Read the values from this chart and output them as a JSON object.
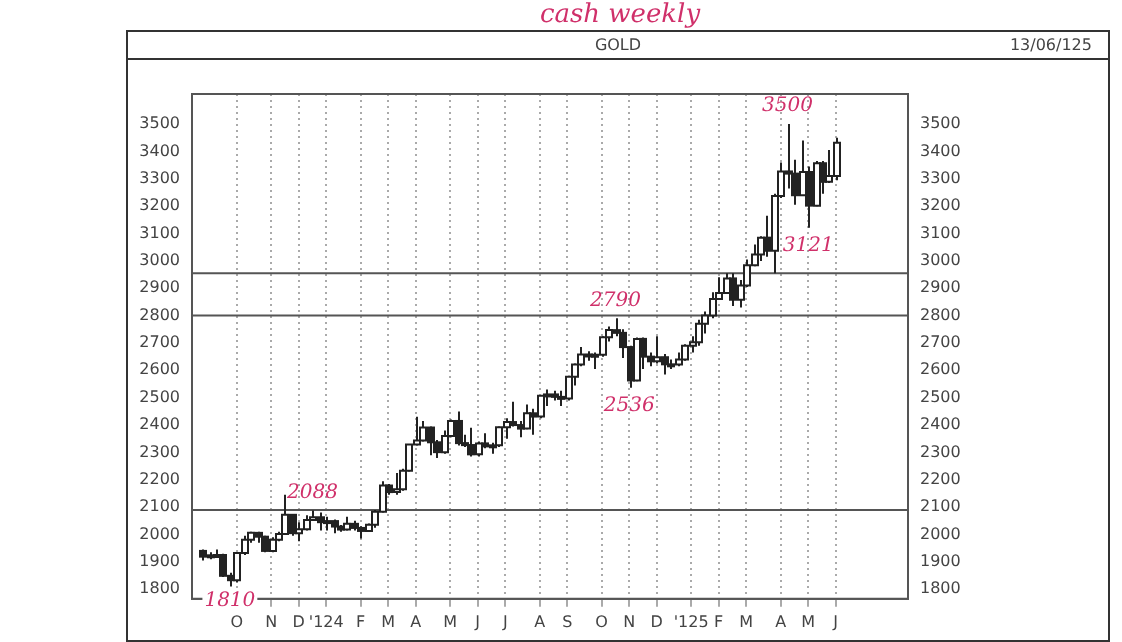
{
  "chart_data": {
    "type": "candlestick",
    "title": "GOLD",
    "annotations": [
      "cash weekly",
      "13/06/125",
      {
        "text": "3500",
        "y": 3500
      },
      {
        "text": "3121",
        "y": 3121
      },
      {
        "text": "2790",
        "y": 2790
      },
      {
        "text": "2536",
        "y": 2536
      },
      {
        "text": "2088",
        "y": 2088
      },
      {
        "text": "1810",
        "y": 1810
      }
    ],
    "categories": [
      null,
      null,
      null,
      null,
      null,
      "O",
      null,
      null,
      null,
      null,
      "N",
      null,
      null,
      null,
      "D",
      null,
      null,
      null,
      "'124",
      null,
      null,
      null,
      null,
      "F",
      null,
      null,
      null,
      "M",
      null,
      null,
      null,
      "A",
      null,
      null,
      null,
      null,
      "M",
      null,
      null,
      null,
      "J",
      null,
      null,
      null,
      "J",
      null,
      null,
      null,
      null,
      "A",
      null,
      null,
      null,
      "S",
      null,
      null,
      null,
      null,
      "O",
      null,
      null,
      null,
      "N",
      null,
      null,
      null,
      "D",
      null,
      null,
      null,
      null,
      "'125",
      null,
      null,
      null,
      "F",
      null,
      null,
      null,
      "M",
      null,
      null,
      null,
      null,
      "A",
      null,
      null,
      null,
      "M",
      null,
      null,
      null,
      "J"
    ],
    "ohlc": [
      [
        1940,
        1945,
        1905,
        1919
      ],
      [
        1919,
        1935,
        1910,
        1924
      ],
      [
        1924,
        1945,
        1915,
        1925
      ],
      [
        1925,
        1930,
        1845,
        1849
      ],
      [
        1849,
        1860,
        1810,
        1833
      ],
      [
        1833,
        1935,
        1825,
        1932
      ],
      [
        1932,
        1995,
        1925,
        1981
      ],
      [
        1981,
        2010,
        1970,
        2006
      ],
      [
        2006,
        2010,
        1970,
        1992
      ],
      [
        1992,
        1995,
        1935,
        1940
      ],
      [
        1940,
        1990,
        1935,
        1981
      ],
      [
        1981,
        2010,
        1975,
        2002
      ],
      [
        2002,
        2145,
        2000,
        2072
      ],
      [
        2072,
        2075,
        1995,
        2005
      ],
      [
        2005,
        2045,
        1975,
        2019
      ],
      [
        2019,
        2070,
        2015,
        2053
      ],
      [
        2053,
        2088,
        2050,
        2063
      ],
      [
        2063,
        2080,
        2015,
        2045
      ],
      [
        2045,
        2065,
        2015,
        2049
      ],
      [
        2049,
        2055,
        2005,
        2029
      ],
      [
        2029,
        2035,
        2010,
        2018
      ],
      [
        2018,
        2065,
        2015,
        2039
      ],
      [
        2039,
        2050,
        2015,
        2024
      ],
      [
        2024,
        2030,
        1985,
        2013
      ],
      [
        2013,
        2040,
        2010,
        2036
      ],
      [
        2036,
        2090,
        2025,
        2083
      ],
      [
        2083,
        2195,
        2080,
        2179
      ],
      [
        2179,
        2185,
        2145,
        2155
      ],
      [
        2155,
        2225,
        2145,
        2165
      ],
      [
        2165,
        2240,
        2160,
        2233
      ],
      [
        2233,
        2330,
        2230,
        2329
      ],
      [
        2329,
        2430,
        2325,
        2344
      ],
      [
        2344,
        2415,
        2340,
        2391
      ],
      [
        2391,
        2395,
        2290,
        2337
      ],
      [
        2337,
        2345,
        2280,
        2301
      ],
      [
        2301,
        2380,
        2295,
        2360
      ],
      [
        2360,
        2420,
        2355,
        2415
      ],
      [
        2415,
        2450,
        2325,
        2334
      ],
      [
        2334,
        2365,
        2320,
        2327
      ],
      [
        2327,
        2390,
        2285,
        2293
      ],
      [
        2293,
        2340,
        2285,
        2333
      ],
      [
        2333,
        2370,
        2315,
        2322
      ],
      [
        2322,
        2335,
        2295,
        2326
      ],
      [
        2326,
        2395,
        2320,
        2392
      ],
      [
        2392,
        2425,
        2350,
        2411
      ],
      [
        2411,
        2485,
        2395,
        2400
      ],
      [
        2400,
        2415,
        2355,
        2387
      ],
      [
        2387,
        2475,
        2385,
        2443
      ],
      [
        2443,
        2460,
        2365,
        2431
      ],
      [
        2431,
        2510,
        2425,
        2507
      ],
      [
        2507,
        2530,
        2470,
        2512
      ],
      [
        2512,
        2525,
        2490,
        2503
      ],
      [
        2503,
        2525,
        2470,
        2497
      ],
      [
        2497,
        2580,
        2490,
        2577
      ],
      [
        2577,
        2625,
        2545,
        2621
      ],
      [
        2621,
        2685,
        2615,
        2658
      ],
      [
        2658,
        2670,
        2635,
        2653
      ],
      [
        2653,
        2665,
        2605,
        2657
      ],
      [
        2657,
        2725,
        2650,
        2721
      ],
      [
        2721,
        2760,
        2705,
        2747
      ],
      [
        2747,
        2790,
        2725,
        2737
      ],
      [
        2737,
        2750,
        2645,
        2685
      ],
      [
        2685,
        2690,
        2536,
        2563
      ],
      [
        2563,
        2720,
        2560,
        2715
      ],
      [
        2715,
        2720,
        2605,
        2650
      ],
      [
        2650,
        2665,
        2615,
        2633
      ],
      [
        2633,
        2725,
        2625,
        2648
      ],
      [
        2648,
        2660,
        2585,
        2622
      ],
      [
        2622,
        2640,
        2605,
        2621
      ],
      [
        2621,
        2665,
        2615,
        2640
      ],
      [
        2640,
        2695,
        2635,
        2690
      ],
      [
        2690,
        2725,
        2665,
        2703
      ],
      [
        2703,
        2785,
        2690,
        2770
      ],
      [
        2770,
        2815,
        2735,
        2800
      ],
      [
        2800,
        2885,
        2790,
        2861
      ],
      [
        2861,
        2940,
        2860,
        2883
      ],
      [
        2883,
        2955,
        2880,
        2936
      ],
      [
        2936,
        2955,
        2835,
        2858
      ],
      [
        2858,
        2930,
        2830,
        2910
      ],
      [
        2910,
        3005,
        2905,
        2984
      ],
      [
        2984,
        3060,
        2980,
        3023
      ],
      [
        3023,
        3090,
        3000,
        3085
      ],
      [
        3085,
        3165,
        3015,
        3037
      ],
      [
        3037,
        3245,
        2955,
        3237
      ],
      [
        3237,
        3360,
        3230,
        3327
      ],
      [
        3327,
        3500,
        3265,
        3319
      ],
      [
        3319,
        3370,
        3205,
        3240
      ],
      [
        3240,
        3440,
        3240,
        3325
      ],
      [
        3325,
        3345,
        3121,
        3202
      ],
      [
        3202,
        3365,
        3200,
        3357
      ],
      [
        3357,
        3365,
        3245,
        3289
      ],
      [
        3289,
        3405,
        3285,
        3310
      ],
      [
        3310,
        3450,
        3295,
        3432
      ]
    ],
    "ylim": [
      1765,
      3610
    ],
    "yticks": [
      1800,
      1900,
      2000,
      2100,
      2200,
      2300,
      2400,
      2500,
      2600,
      2700,
      2800,
      2900,
      3000,
      3100,
      3200,
      3300,
      3400,
      3500
    ],
    "y2lim": [
      1765,
      3610
    ],
    "y2ticks": [
      1800,
      1900,
      2000,
      2100,
      2200,
      2300,
      2400,
      2500,
      2600,
      2700,
      2800,
      2900,
      3000,
      3100,
      3200,
      3300,
      3400,
      3500
    ],
    "ref_lines": [
      {
        "axis": "y",
        "value": 2955
      },
      {
        "axis": "y",
        "value": 2800
      },
      {
        "axis": "y",
        "value": 2090
      }
    ],
    "grid": "x"
  }
}
